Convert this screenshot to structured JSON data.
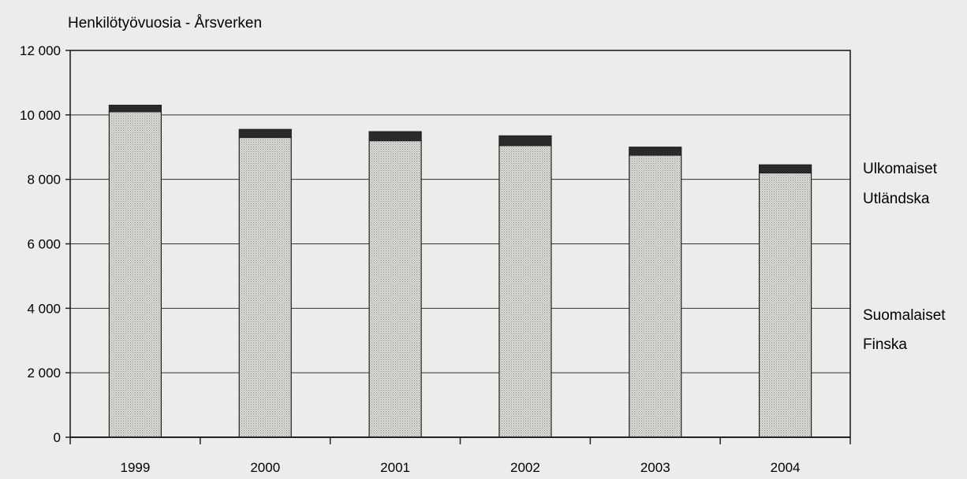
{
  "chart_data": {
    "type": "bar",
    "stacked": true,
    "title": "",
    "ylabel": "Henkilötyövuosia - Årsverken",
    "xlabel": "",
    "categories": [
      "1999",
      "2000",
      "2001",
      "2002",
      "2003",
      "2004"
    ],
    "ylim": [
      0,
      12000
    ],
    "yticks": [
      0,
      2000,
      4000,
      6000,
      8000,
      10000,
      12000
    ],
    "ytick_labels": [
      "0",
      "2 000",
      "4 000",
      "6 000",
      "8 000",
      "10 000",
      "12 000"
    ],
    "grid": true,
    "legend_position": "right",
    "series": [
      {
        "name": "Suomalaiset Finska",
        "label_lines": [
          "Suomalaiset",
          "Finska"
        ],
        "values": [
          10100,
          9300,
          9200,
          9050,
          8750,
          8200
        ],
        "color": "#c8c8c4"
      },
      {
        "name": "Ulkomaiset Utländska",
        "label_lines": [
          "Ulkomaiset",
          "Utländska"
        ],
        "values": [
          200,
          250,
          280,
          300,
          250,
          250
        ],
        "color": "#2a2a2a"
      }
    ]
  }
}
